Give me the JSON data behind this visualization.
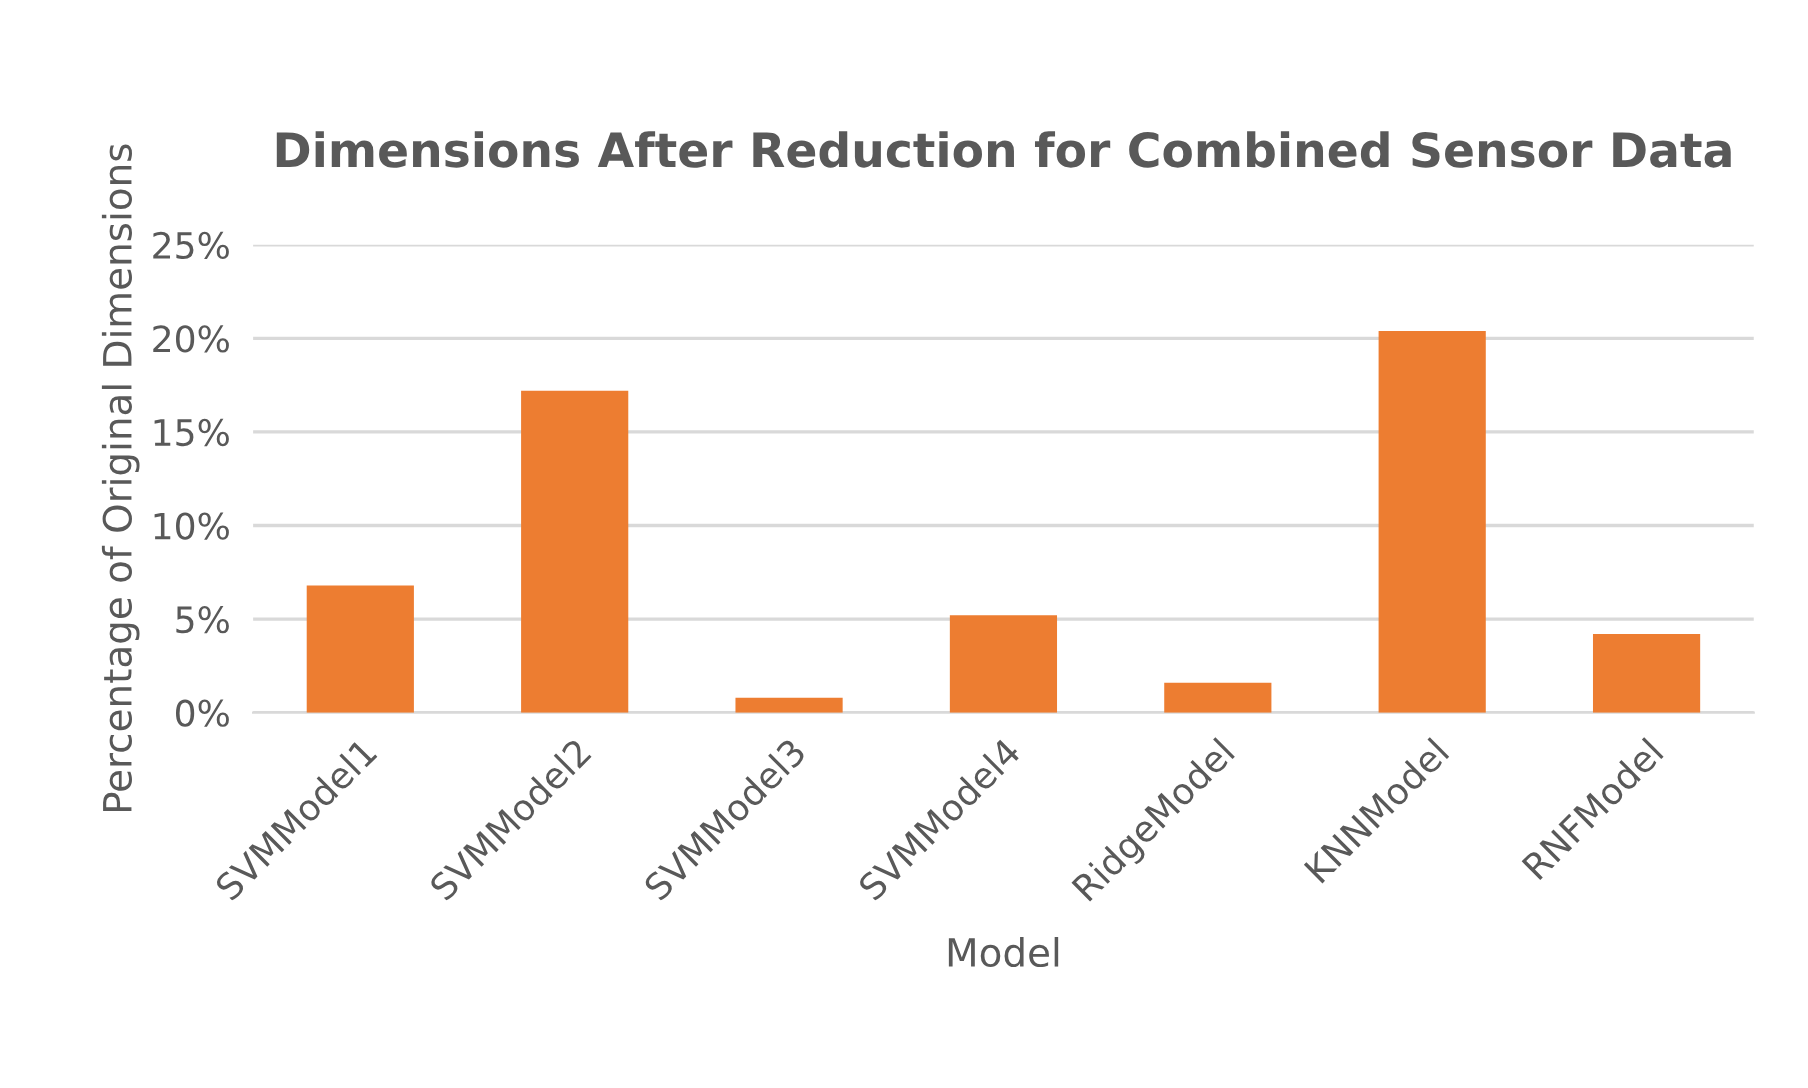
{
  "chart_data": {
    "type": "bar",
    "title": "Dimensions After Reduction for Combined Sensor Data",
    "xlabel": "Model",
    "ylabel": "Percentage of Original Dimensions",
    "categories": [
      "SVMModel1",
      "SVMModel2",
      "SVMModel3",
      "SVMModel4",
      "RidgeModel",
      "KNNModel",
      "RNFModel"
    ],
    "values": [
      6.8,
      17.2,
      0.8,
      5.2,
      1.6,
      20.4,
      4.2
    ],
    "color": "#ed7d31",
    "ylim": [
      0,
      25
    ],
    "yticks": [
      {
        "value": 0,
        "label": "0%"
      },
      {
        "value": 5,
        "label": "5%"
      },
      {
        "value": 10,
        "label": "10%"
      },
      {
        "value": 15,
        "label": "15%"
      },
      {
        "value": 20,
        "label": "20%"
      },
      {
        "value": 25,
        "label": "25%"
      }
    ],
    "grid": "y"
  }
}
